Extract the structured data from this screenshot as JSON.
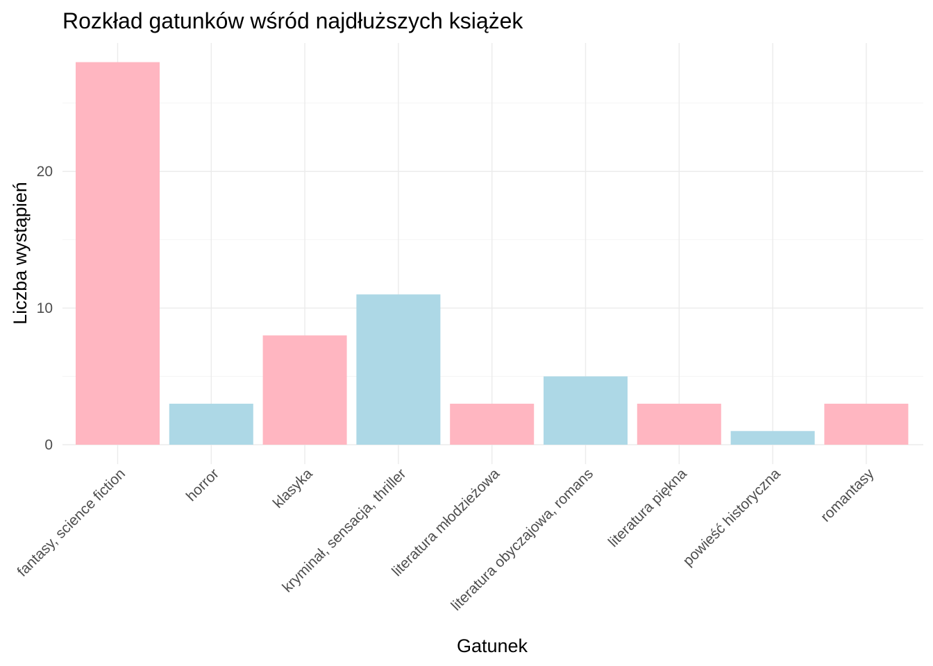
{
  "chart_data": {
    "type": "bar",
    "title": "Rozkład gatunków wśród najdłuższych książek",
    "xlabel": "Gatunek",
    "ylabel": "Liczba wystąpień",
    "categories": [
      "fantasy, science fiction",
      "horror",
      "klasyka",
      "kryminał, sensacja, thriller",
      "literatura młodzieżowa",
      "literatura obyczajowa, romans",
      "literatura piękna",
      "powieść historyczna",
      "romantasy"
    ],
    "values": [
      28,
      3,
      8,
      11,
      3,
      5,
      3,
      1,
      3
    ],
    "bar_colors": [
      "#FFB6C1",
      "#ADD8E6",
      "#FFB6C1",
      "#ADD8E6",
      "#FFB6C1",
      "#ADD8E6",
      "#FFB6C1",
      "#ADD8E6",
      "#FFB6C1"
    ],
    "yticks": [
      0,
      10,
      20
    ],
    "ylim": [
      0,
      29.4
    ],
    "grid": true,
    "legend": "none"
  }
}
